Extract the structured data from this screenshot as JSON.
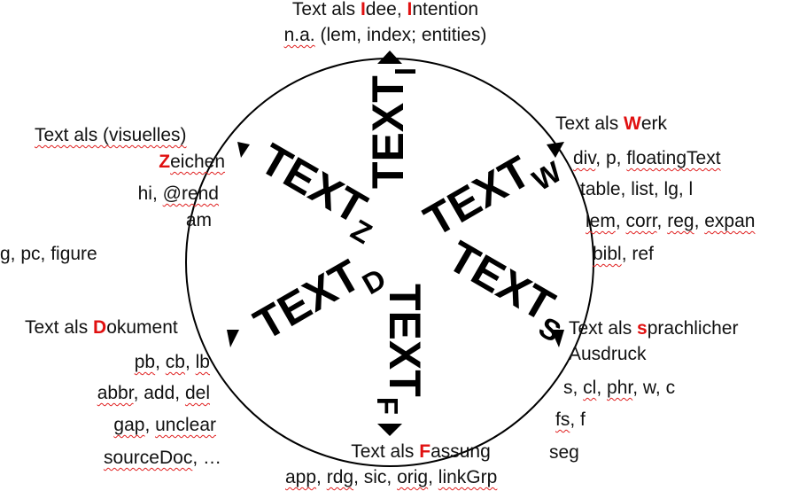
{
  "sections": {
    "idee": {
      "word": "TEXT",
      "sub": "I",
      "title_pre": "Text als ",
      "title_hl": "I",
      "title_mid": "dee, ",
      "title_hl2": "I",
      "title_post": "ntention",
      "line_na": "n.a.",
      "line_rest": " (lem, index; entities)"
    },
    "werk": {
      "word": "TEXT",
      "sub": "W",
      "title_pre": "Text als ",
      "title_hl": "W",
      "title_post": "erk",
      "l1a": "div",
      "l1b": ", p, ",
      "l1c": "floatingText",
      "l2": "table, list, lg, l",
      "l3a": "lem",
      "l3b": ", ",
      "l3c": "corr",
      "l3d": ", ",
      "l3e": "reg",
      "l3f": ", ",
      "l3g": "expan",
      "l4a": "bibl",
      "l4b": ", ref"
    },
    "sprache": {
      "word": "TEXT",
      "sub": "S",
      "title_pre": "Text als ",
      "title_hl": "s",
      "title_post": "prachlicher",
      "title_line2": "Ausdruck",
      "l1a": "s, ",
      "l1b": "cl",
      "l1c": ", ",
      "l1d": "phr",
      "l1e": ", w, c",
      "l2a": "fs",
      "l2b": ", f",
      "l3": "seg"
    },
    "fassung": {
      "word": "TEXT",
      "sub": "F",
      "title_pre": "Text als ",
      "title_hl": "F",
      "title_post": "assung",
      "l1a": "app",
      "l1b": ", ",
      "l1c": "rdg",
      "l1d": ", sic, ",
      "l1e": "orig",
      "l1f": ", ",
      "l1g": "linkGrp"
    },
    "dokument": {
      "word": "TEXT",
      "sub": "D",
      "title_pre": "Text als ",
      "title_hl": "D",
      "title_post": "okument",
      "l1a": "pb",
      "l1b": ", ",
      "l1c": "cb",
      "l1d": ", ",
      "l1e": "lb",
      "l2a": "abbr",
      "l2b": ", add, ",
      "l2c": "del",
      "l3a": "gap",
      "l3b": ", ",
      "l3c": "unclear",
      "l4a": "sourceDoc",
      "l4b": ", …"
    },
    "zeichen": {
      "word": "TEXT",
      "sub": "Z",
      "title_line1": "Text als (visuelles)",
      "title_hl": "Z",
      "title_post": "eichen",
      "l1a": "hi",
      "l1b": ", ",
      "l1c": "@rend",
      "l2": "am",
      "l3": "g, pc, figure"
    }
  },
  "colors": {
    "highlight": "#e01010",
    "spellcheck": "#e02020",
    "ink": "#000000"
  }
}
